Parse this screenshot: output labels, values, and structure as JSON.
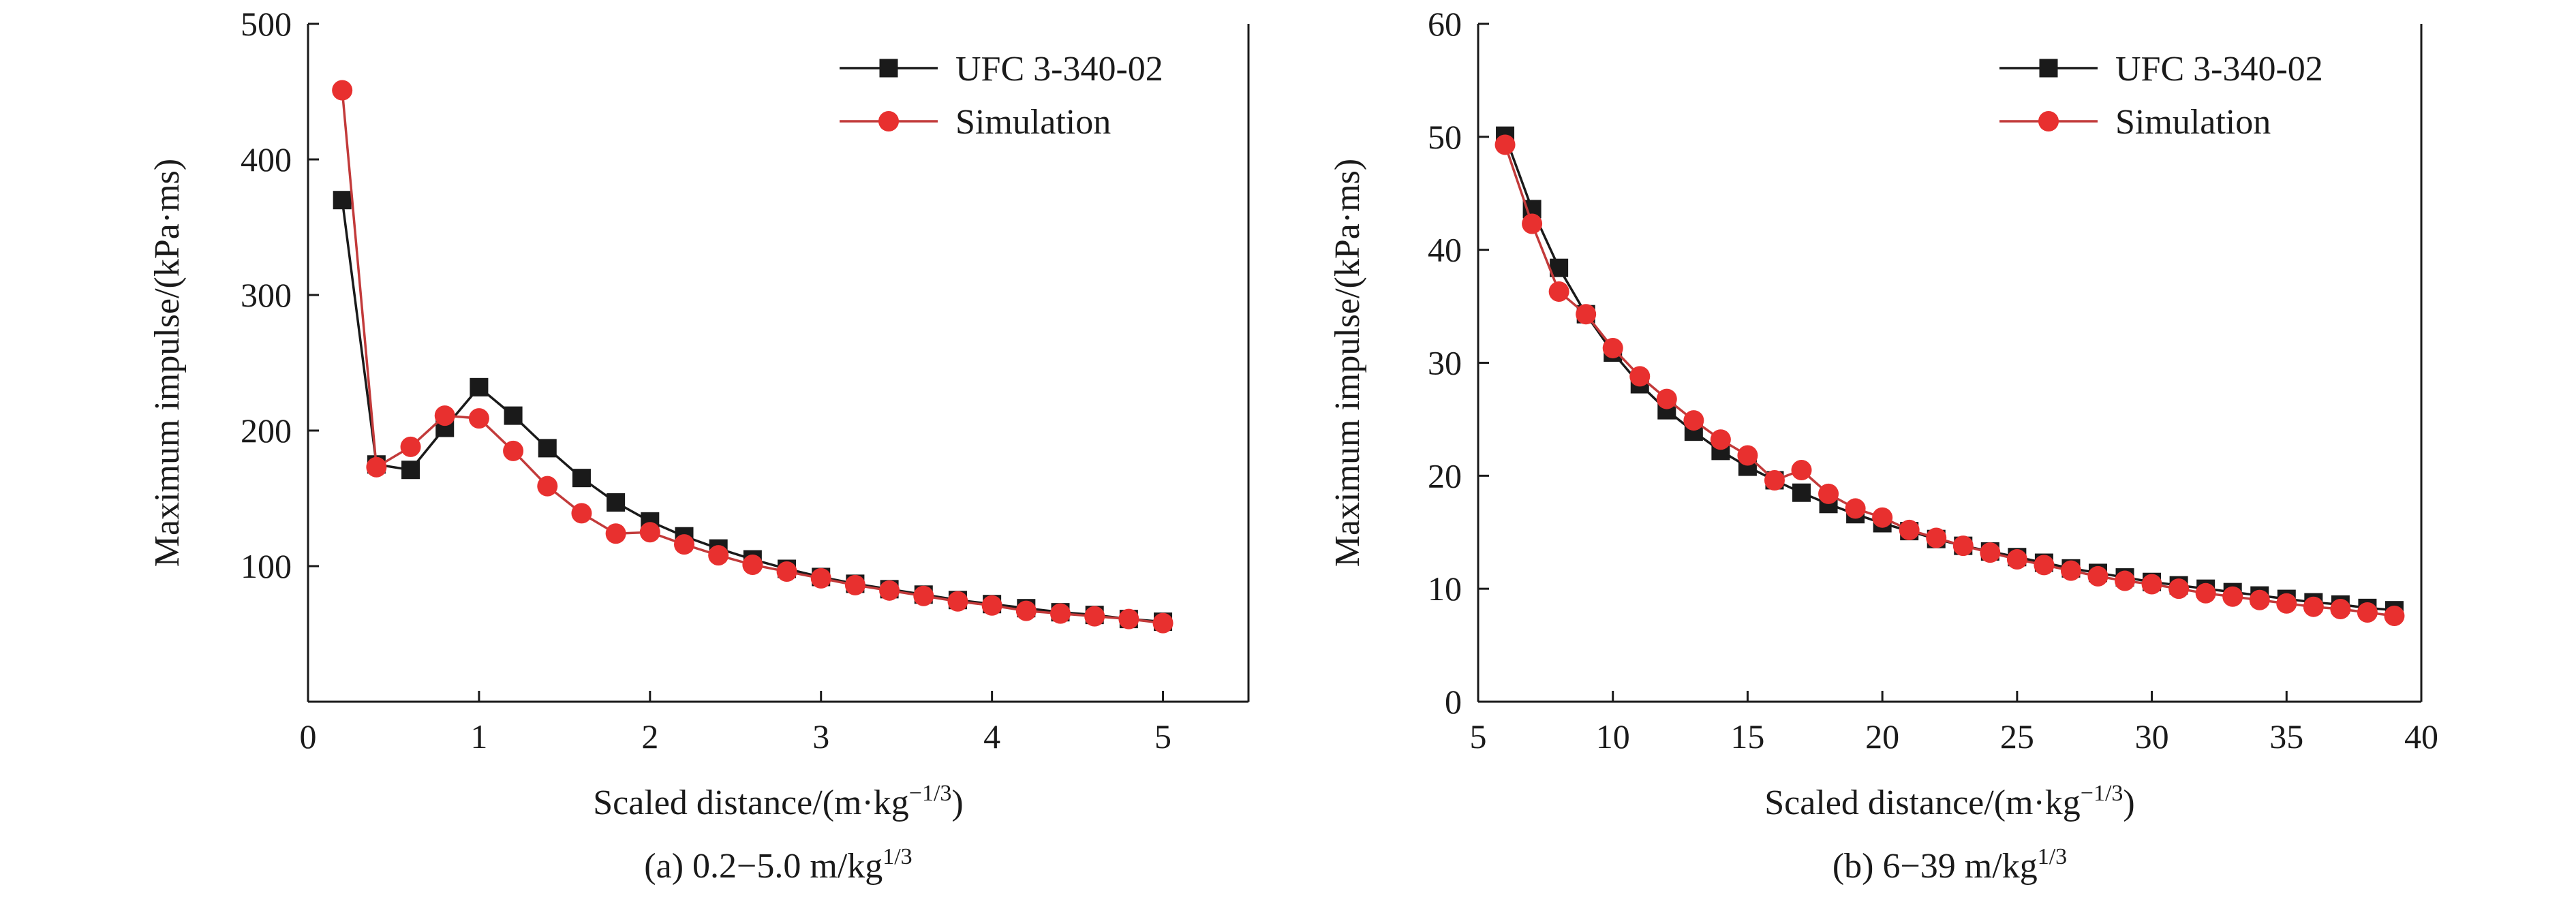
{
  "figure": {
    "panels": [
      {
        "caption_main": "(a) 0.2−5.0 m/kg",
        "caption_sup": "1/3"
      },
      {
        "caption_main": "(b) 6−39 m/kg",
        "caption_sup": "1/3"
      }
    ]
  },
  "colors": {
    "ufc": "#1a1a1a",
    "simulation": "#e8302f",
    "simulation_line": "#c23a3a",
    "axis": "#1a1a1a"
  },
  "chart_data": [
    {
      "type": "line",
      "title": "",
      "xlabel": "Scaled distance/(m·kg",
      "xlabel_sup": "−1/3",
      "xlabel_tail": ")",
      "ylabel": "Maximum impulse/(kPa·ms)",
      "xlim": [
        0,
        5.5
      ],
      "ylim": [
        0,
        500
      ],
      "xticks": [
        0,
        1,
        2,
        3,
        4,
        5
      ],
      "yticks": [
        100,
        200,
        300,
        400,
        500
      ],
      "ytick_labels": [
        "100",
        "200",
        "300",
        "400",
        "500"
      ],
      "legend_position": "top-right",
      "series": [
        {
          "name": "UFC 3-340-02",
          "marker": "square",
          "x": [
            0.2,
            0.4,
            0.6,
            0.8,
            1.0,
            1.2,
            1.4,
            1.6,
            1.8,
            2.0,
            2.2,
            2.4,
            2.6,
            2.8,
            3.0,
            3.2,
            3.4,
            3.6,
            3.8,
            4.0,
            4.2,
            4.4,
            4.6,
            4.8,
            5.0
          ],
          "y": [
            370,
            175,
            171,
            202,
            232,
            211,
            187,
            165,
            147,
            133,
            122,
            113,
            105,
            98,
            92,
            87,
            83,
            79,
            75,
            72,
            69,
            66,
            64,
            61,
            59
          ]
        },
        {
          "name": "Simulation",
          "marker": "circle",
          "x": [
            0.2,
            0.4,
            0.6,
            0.8,
            1.0,
            1.2,
            1.4,
            1.6,
            1.8,
            2.0,
            2.2,
            2.4,
            2.6,
            2.8,
            3.0,
            3.2,
            3.4,
            3.6,
            3.8,
            4.0,
            4.2,
            4.4,
            4.6,
            4.8,
            5.0
          ],
          "y": [
            451,
            173,
            188,
            211,
            209,
            185,
            159,
            139,
            124,
            125,
            116,
            108,
            101,
            96,
            91,
            86,
            82,
            78,
            74,
            71,
            67,
            65,
            63,
            61,
            58
          ]
        }
      ]
    },
    {
      "type": "line",
      "title": "",
      "xlabel": "Scaled distance/(m·kg",
      "xlabel_sup": "−1/3",
      "xlabel_tail": ")",
      "ylabel": "Maximum impulse/(kPa·ms)",
      "xlim": [
        5,
        40
      ],
      "ylim": [
        0,
        60
      ],
      "xticks": [
        5,
        10,
        15,
        20,
        25,
        30,
        35,
        40
      ],
      "yticks": [
        0,
        10,
        20,
        30,
        40,
        50,
        60
      ],
      "ytick_labels": [
        "0",
        "10",
        "20",
        "30",
        "40",
        "50",
        "60"
      ],
      "legend_position": "top-right",
      "series": [
        {
          "name": "UFC 3-340-02",
          "marker": "square",
          "x": [
            6,
            7,
            8,
            9,
            10,
            11,
            12,
            13,
            14,
            15,
            16,
            17,
            18,
            19,
            20,
            21,
            22,
            23,
            24,
            25,
            26,
            27,
            28,
            29,
            30,
            31,
            32,
            33,
            34,
            35,
            36,
            37,
            38,
            39
          ],
          "y": [
            50.1,
            43.6,
            38.4,
            34.3,
            30.9,
            28.1,
            25.8,
            23.9,
            22.2,
            20.8,
            19.6,
            18.5,
            17.5,
            16.6,
            15.8,
            15.1,
            14.4,
            13.8,
            13.3,
            12.8,
            12.3,
            11.8,
            11.4,
            11.0,
            10.6,
            10.3,
            10.0,
            9.7,
            9.4,
            9.1,
            8.8,
            8.6,
            8.3,
            8.1
          ]
        },
        {
          "name": "Simulation",
          "marker": "circle",
          "x": [
            6,
            7,
            8,
            9,
            10,
            11,
            12,
            13,
            14,
            15,
            16,
            17,
            18,
            19,
            20,
            21,
            22,
            23,
            24,
            25,
            26,
            27,
            28,
            29,
            30,
            31,
            32,
            33,
            34,
            35,
            36,
            37,
            38,
            39
          ],
          "y": [
            49.3,
            42.3,
            36.3,
            34.3,
            31.3,
            28.8,
            26.8,
            24.9,
            23.2,
            21.8,
            19.6,
            20.5,
            18.4,
            17.1,
            16.3,
            15.2,
            14.5,
            13.8,
            13.2,
            12.6,
            12.1,
            11.6,
            11.1,
            10.7,
            10.4,
            10.0,
            9.6,
            9.3,
            9.0,
            8.7,
            8.4,
            8.2,
            7.9,
            7.6
          ]
        }
      ]
    }
  ]
}
